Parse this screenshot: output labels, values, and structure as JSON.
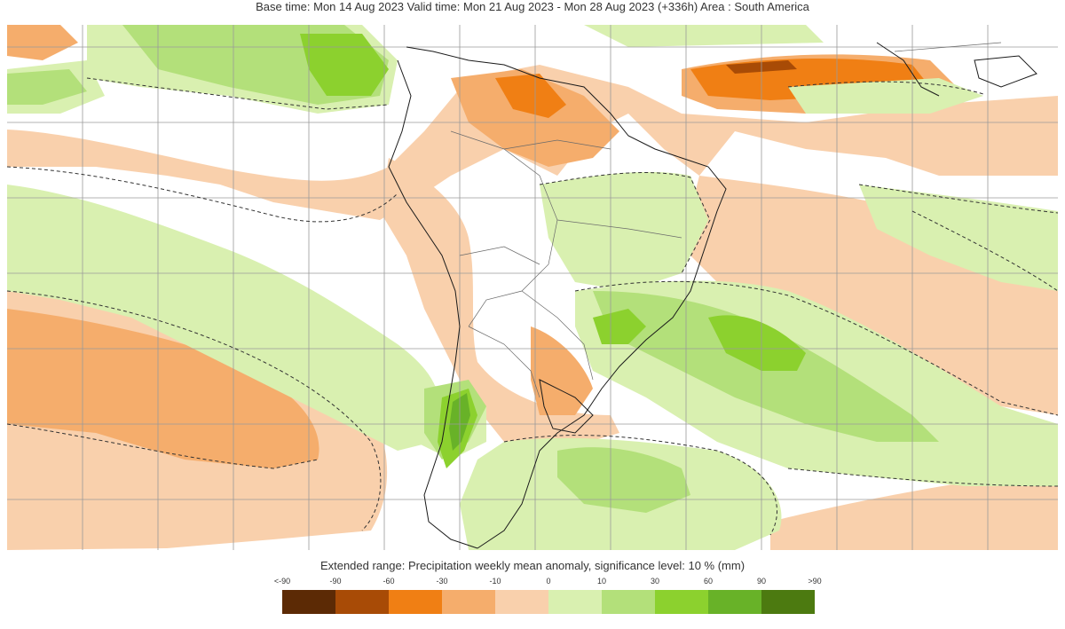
{
  "header": {
    "title": "Base time: Mon 14 Aug 2023 Valid time: Mon 21 Aug 2023 - Mon 28 Aug 2023 (+336h) Area : South America"
  },
  "legend": {
    "title": "Extended range: Precipitation weekly mean anomaly, significance level: 10 % (mm)",
    "ticks": [
      "<-90",
      "-90",
      "-60",
      "-30",
      "-10",
      "0",
      "10",
      "30",
      "60",
      "90",
      ">90"
    ],
    "colors": [
      "#5c2a05",
      "#a84b06",
      "#f07f14",
      "#f5ad6c",
      "#f9d0ac",
      "#d9f0b0",
      "#b3e07a",
      "#8cd12e",
      "#68b228",
      "#4c7a10"
    ]
  },
  "palette": {
    "brown_dark": "#5c2a05",
    "orange_strong": "#f07f14",
    "orange_mid": "#f5ad6c",
    "orange_light": "#f9d0ac",
    "green_light": "#d9f0b0",
    "green_mid": "#b3e07a",
    "green_strong": "#8cd12e",
    "green_dark": "#68b228",
    "green_darkest": "#4c7a10"
  }
}
